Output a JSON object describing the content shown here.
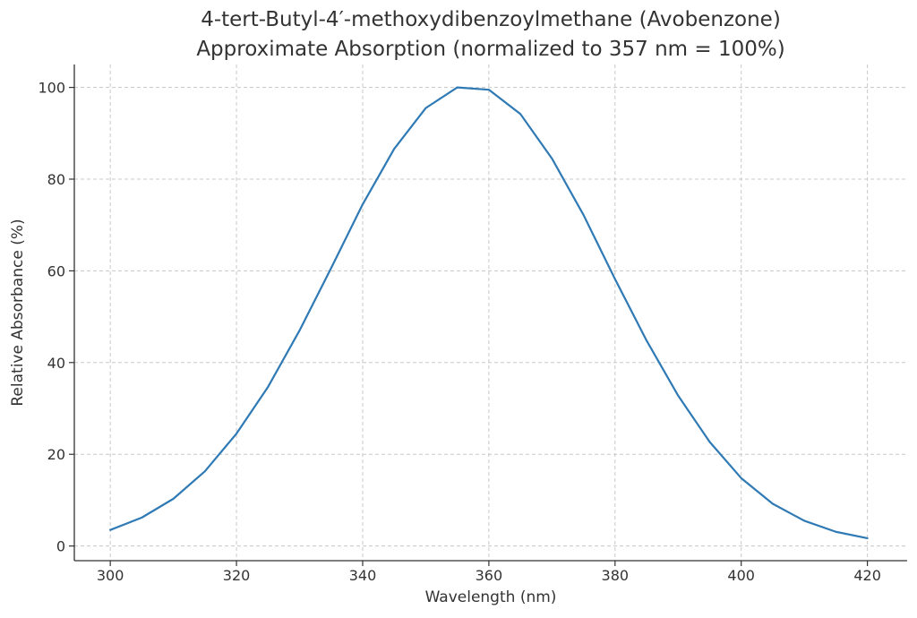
{
  "chart_data": {
    "type": "line",
    "title": "4-tert-Butyl-4′-methoxydibenzoylmethane (Avobenzone)",
    "subtitle": "Approximate Absorption (normalized to 357 nm = 100%)",
    "xlabel": "Wavelength (nm)",
    "ylabel": "Relative Absorbance (%)",
    "xlim": [
      294.3,
      426.3
    ],
    "ylim": [
      -3.2,
      105.0
    ],
    "xticks": [
      300,
      320,
      340,
      360,
      380,
      400,
      420
    ],
    "yticks": [
      0,
      20,
      40,
      60,
      80,
      100
    ],
    "grid": true,
    "x": [
      300,
      305,
      310,
      315,
      320,
      325,
      330,
      335,
      340,
      345,
      350,
      355,
      360,
      365,
      370,
      375,
      380,
      385,
      390,
      395,
      400,
      405,
      410,
      415,
      420
    ],
    "series": [
      {
        "values": [
          3.5,
          6.2,
          10.3,
          16.3,
          24.5,
          34.7,
          47.0,
          60.6,
          74.5,
          86.6,
          95.5,
          100.0,
          99.5,
          94.2,
          84.5,
          72.2,
          58.2,
          44.8,
          32.8,
          22.7,
          14.8,
          9.2,
          5.5,
          3.1,
          1.7
        ],
        "color": "#2f7ab5"
      }
    ]
  }
}
